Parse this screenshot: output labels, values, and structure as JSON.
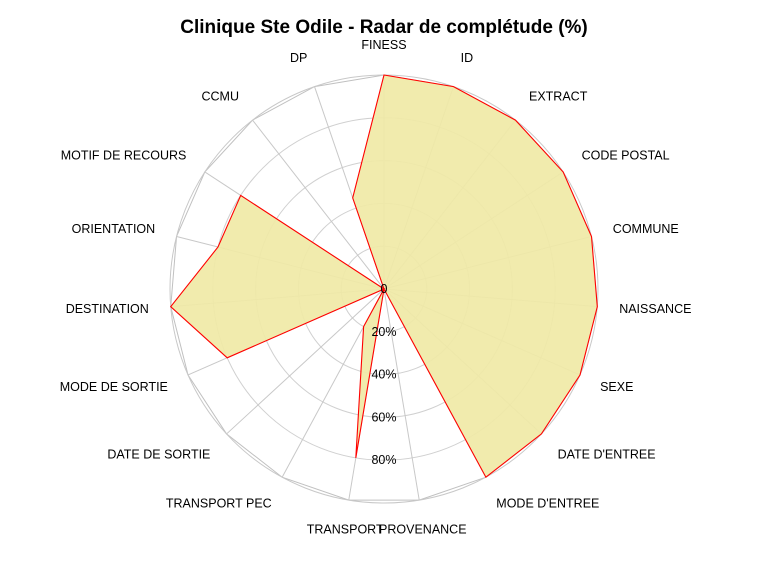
{
  "chart_data": {
    "type": "radar",
    "title": "Clinique Ste Odile - Radar de complétude (%)",
    "axes": [
      "FINESS",
      "ID",
      "EXTRACT",
      "CODE POSTAL",
      "COMMUNE",
      "NAISSANCE",
      "SEXE",
      "DATE D'ENTREE",
      "MODE D'ENTREE",
      "PROVENANCE",
      "TRANSPORT",
      "TRANSPORT PEC",
      "DATE DE SORTIE",
      "MODE DE SORTIE",
      "DESTINATION",
      "ORIENTATION",
      "MOTIF DE RECOURS",
      "CCMU",
      "DP"
    ],
    "series": [
      {
        "values": [
          100,
          100,
          100,
          100,
          100,
          100,
          100,
          100,
          100,
          0,
          80,
          20,
          0,
          80,
          100,
          80,
          80,
          0,
          45
        ]
      }
    ],
    "rlim": [
      0,
      100
    ],
    "ring_labels": [
      "0",
      "20%",
      "40%",
      "60%",
      "80%"
    ],
    "ring_values": [
      0,
      20,
      40,
      60,
      80
    ],
    "grid": true,
    "fill_color": "#f0e9a6",
    "line_color": "#ff0000",
    "grid_color": "#c8c8c8"
  }
}
